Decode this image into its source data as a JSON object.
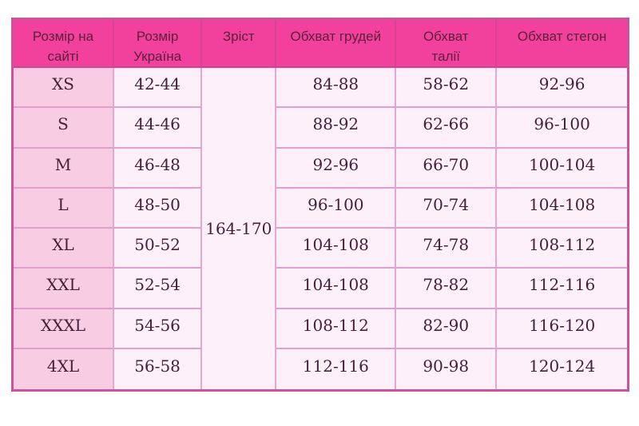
{
  "table": {
    "headers": [
      "Розмір на сайті",
      "Розмір Україна",
      "Зріст",
      "Обхват грудей",
      "Обхват талії",
      "Обхват стегон"
    ],
    "height_all_sizes": "164-170",
    "rows": [
      {
        "site": "XS",
        "ua": "42-44",
        "chest": "84-88",
        "waist": "58-62",
        "hips": "92-96"
      },
      {
        "site": "S",
        "ua": "44-46",
        "chest": "88-92",
        "waist": "62-66",
        "hips": "96-100"
      },
      {
        "site": "M",
        "ua": "46-48",
        "chest": "92-96",
        "waist": "66-70",
        "hips": "100-104"
      },
      {
        "site": "L",
        "ua": "48-50",
        "chest": "96-100",
        "waist": "70-74",
        "hips": "104-108"
      },
      {
        "site": "XL",
        "ua": "50-52",
        "chest": "104-108",
        "waist": "74-78",
        "hips": "108-112"
      },
      {
        "site": "XXL",
        "ua": "52-54",
        "chest": "104-108",
        "waist": "78-82",
        "hips": "112-116"
      },
      {
        "site": "XXXL",
        "ua": "54-56",
        "chest": "108-112",
        "waist": "82-90",
        "hips": "116-120"
      },
      {
        "site": "4XL",
        "ua": "56-58",
        "chest": "112-116",
        "waist": "90-98",
        "hips": "120-124"
      }
    ]
  },
  "colors": {
    "header_bg": "#f1419c",
    "header_text": "#5c1f3b",
    "cell_text": "#44203a",
    "first_col_bg": "#f8cde4",
    "cell_bg": "#fdf0f8",
    "outer_border": "#c9539e",
    "inner_border": "#e0a0cb",
    "header_divider": "#d6448f"
  }
}
